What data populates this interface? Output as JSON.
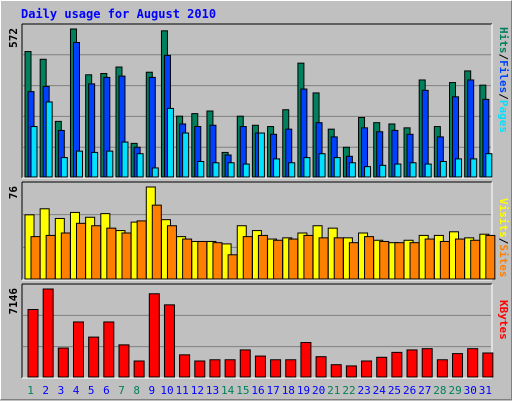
{
  "title": "Daily usage for August 2010",
  "colors": {
    "background": "#c0c0c0",
    "plot_bg": "#c0c0c0",
    "title": "#0000ff",
    "hits": "#00805c",
    "files": "#0040ff",
    "pages": "#00e0ff",
    "visits": "#ffff00",
    "sites": "#ff8000",
    "kbytes": "#ff0000",
    "weekday": "#0000ff",
    "weekend": "#00805c",
    "separator": "#000000"
  },
  "chart_data": [
    {
      "type": "bar",
      "name": "hits-files-pages",
      "legend": [
        {
          "label": "Pages",
          "color_key": "pages"
        },
        {
          "label": "/",
          "color_key": "separator"
        },
        {
          "label": "Files",
          "color_key": "files"
        },
        {
          "label": "/",
          "color_key": "separator"
        },
        {
          "label": "Hits",
          "color_key": "hits"
        }
      ],
      "ymax_label": "572",
      "ymax": 572,
      "series": [
        {
          "name": "Hits",
          "color_key": "hits",
          "values": [
            485,
            455,
            215,
            572,
            395,
            400,
            425,
            130,
            405,
            565,
            235,
            245,
            255,
            95,
            235,
            200,
            195,
            260,
            440,
            325,
            185,
            115,
            230,
            210,
            205,
            190,
            375,
            195,
            365,
            410,
            355
          ]
        },
        {
          "name": "Files",
          "color_key": "files",
          "values": [
            330,
            350,
            180,
            520,
            360,
            385,
            390,
            115,
            385,
            470,
            205,
            195,
            200,
            85,
            195,
            170,
            165,
            185,
            340,
            210,
            155,
            80,
            190,
            175,
            180,
            165,
            335,
            155,
            310,
            375,
            300
          ]
        },
        {
          "name": "Pages",
          "color_key": "pages",
          "values": [
            195,
            290,
            75,
            100,
            95,
            100,
            135,
            90,
            35,
            265,
            170,
            60,
            55,
            55,
            50,
            170,
            70,
            55,
            75,
            90,
            75,
            55,
            40,
            45,
            50,
            55,
            50,
            60,
            70,
            70,
            90
          ]
        }
      ]
    },
    {
      "type": "bar",
      "name": "visits-sites",
      "legend": [
        {
          "label": "Sites",
          "color_key": "sites"
        },
        {
          "label": "/",
          "color_key": "separator"
        },
        {
          "label": "Visits",
          "color_key": "visits"
        }
      ],
      "ymax_label": "76",
      "ymax": 76,
      "series": [
        {
          "name": "Visits",
          "color_key": "visits",
          "values": [
            53,
            58,
            50,
            55,
            51,
            54,
            40,
            47,
            76,
            49,
            35,
            31,
            31,
            29,
            44,
            40,
            33,
            34,
            38,
            44,
            42,
            34,
            38,
            32,
            30,
            32,
            36,
            36,
            39,
            34,
            37
          ]
        },
        {
          "name": "Sites",
          "color_key": "sites",
          "values": [
            35,
            36,
            38,
            46,
            44,
            42,
            38,
            48,
            61,
            44,
            33,
            31,
            30,
            20,
            35,
            36,
            32,
            33,
            36,
            34,
            34,
            30,
            35,
            31,
            30,
            30,
            33,
            31,
            33,
            32,
            36
          ]
        }
      ]
    },
    {
      "type": "bar",
      "name": "kbytes",
      "legend": [
        {
          "label": "KBytes",
          "color_key": "kbytes"
        }
      ],
      "ymax_label": "7146",
      "ymax": 7146,
      "series": [
        {
          "name": "KBytes",
          "color_key": "kbytes",
          "values": [
            5480,
            7146,
            2350,
            4470,
            3240,
            4470,
            2610,
            1300,
            6760,
            5860,
            1800,
            1300,
            1400,
            1400,
            2200,
            1700,
            1400,
            1400,
            2800,
            1650,
            1000,
            900,
            1300,
            1600,
            2000,
            2200,
            2300,
            1400,
            1900,
            2300,
            1950
          ]
        }
      ]
    }
  ],
  "days": [
    "1",
    "2",
    "3",
    "4",
    "5",
    "6",
    "7",
    "8",
    "9",
    "10",
    "11",
    "12",
    "13",
    "14",
    "15",
    "16",
    "17",
    "18",
    "19",
    "20",
    "21",
    "22",
    "23",
    "24",
    "25",
    "26",
    "27",
    "28",
    "29",
    "30",
    "31"
  ],
  "weekend_days": [
    "1",
    "7",
    "8",
    "14",
    "15",
    "21",
    "22",
    "28",
    "29"
  ]
}
